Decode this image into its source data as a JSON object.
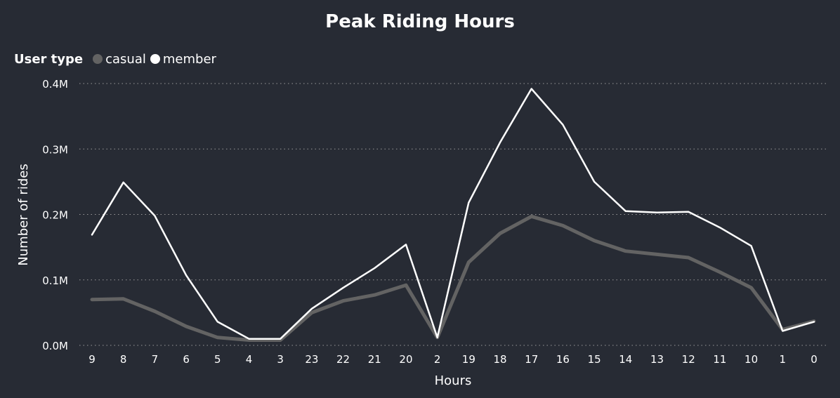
{
  "chart_data": {
    "type": "line",
    "title": "Peak Riding Hours",
    "xlabel": "Hours",
    "ylabel": "Number of rides",
    "legend_title": "User type",
    "legend_position": "top-left",
    "grid": true,
    "ylim": [
      0,
      400000
    ],
    "y_ticks": [
      "0.0M",
      "0.1M",
      "0.2M",
      "0.3M",
      "0.4M"
    ],
    "categories": [
      "9",
      "8",
      "7",
      "6",
      "5",
      "4",
      "3",
      "23",
      "22",
      "21",
      "20",
      "2",
      "19",
      "18",
      "17",
      "16",
      "15",
      "14",
      "13",
      "12",
      "11",
      "10",
      "1",
      "0"
    ],
    "series": [
      {
        "name": "casual",
        "color": "#636363",
        "values": [
          70000,
          71000,
          52000,
          29000,
          12000,
          8000,
          8000,
          50000,
          68000,
          77000,
          92000,
          12000,
          127000,
          171000,
          197000,
          183000,
          160000,
          144000,
          139000,
          134000,
          112000,
          88000,
          24000,
          37000
        ]
      },
      {
        "name": "member",
        "color": "#ffffff",
        "values": [
          169000,
          249000,
          198000,
          107000,
          36000,
          10000,
          10000,
          56000,
          88000,
          118000,
          154000,
          12000,
          218000,
          310000,
          392000,
          337000,
          250000,
          205000,
          203000,
          204000,
          180000,
          152000,
          22000,
          36000
        ]
      }
    ]
  }
}
